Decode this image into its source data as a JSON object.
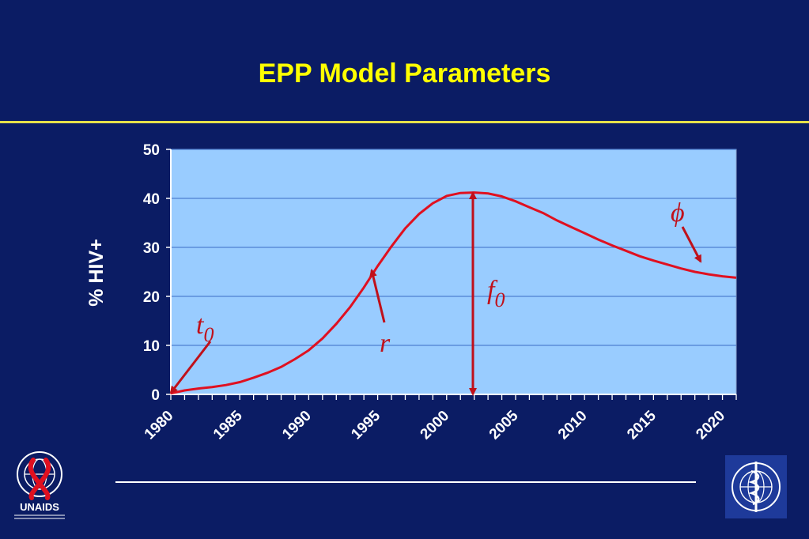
{
  "slide": {
    "title": "EPP Model Parameters"
  },
  "colors": {
    "background": "#0b1c64",
    "title": "#ffff00",
    "plot_area": "#99ccff",
    "grid": "#4f7fd0",
    "curve": "#e01020",
    "annotation": "#c0101a"
  },
  "chart_data": {
    "type": "line",
    "ylabel": "% HIV+",
    "xlabel": "",
    "xlim": [
      1980,
      2021
    ],
    "ylim": [
      0,
      50
    ],
    "x_ticks": [
      "1980",
      "1985",
      "1990",
      "1995",
      "2000",
      "2005",
      "2010",
      "2015",
      "2020"
    ],
    "y_ticks": [
      "0",
      "10",
      "20",
      "30",
      "40",
      "50"
    ],
    "grid": true,
    "series": [
      {
        "name": "",
        "x": [
          1980,
          1981,
          1982,
          1983,
          1984,
          1985,
          1986,
          1987,
          1988,
          1989,
          1990,
          1991,
          1992,
          1993,
          1994,
          1995,
          1996,
          1997,
          1998,
          1999,
          2000,
          2001,
          2002,
          2003,
          2004,
          2005,
          2006,
          2007,
          2008,
          2009,
          2010,
          2011,
          2012,
          2013,
          2014,
          2015,
          2016,
          2017,
          2018,
          2019,
          2020,
          2021
        ],
        "y": [
          0.2,
          0.8,
          1.2,
          1.5,
          1.9,
          2.5,
          3.4,
          4.4,
          5.6,
          7.2,
          9.0,
          11.4,
          14.4,
          17.8,
          21.8,
          26.2,
          30.2,
          33.9,
          36.8,
          39.0,
          40.5,
          41.1,
          41.2,
          41.0,
          40.4,
          39.4,
          38.2,
          37.0,
          35.5,
          34.2,
          32.9,
          31.6,
          30.4,
          29.3,
          28.2,
          27.3,
          26.5,
          25.7,
          25.0,
          24.5,
          24.1,
          23.8
        ]
      }
    ],
    "annotations": [
      {
        "text": "t",
        "sub": "0"
      },
      {
        "text": "r",
        "sub": ""
      },
      {
        "text": "f",
        "sub": "0"
      },
      {
        "text": "ϕ",
        "sub": ""
      }
    ]
  }
}
